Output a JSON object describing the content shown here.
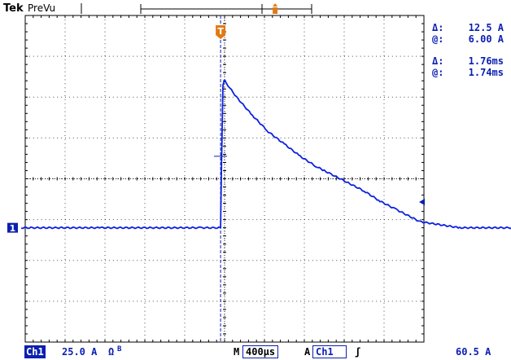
{
  "header": {
    "brand": "Tek",
    "mode": "PreVu",
    "trigger_marker": "T"
  },
  "readouts": {
    "current": {
      "delta_label": "Δ:",
      "delta_value": "12.5 A",
      "at_label": "@:",
      "at_value": "6.00 A"
    },
    "time": {
      "delta_label": "Δ:",
      "delta_value": "1.76ms",
      "at_label": "@:",
      "at_value": "1.74ms"
    }
  },
  "channel_marker": "1",
  "status": {
    "channel": "Ch1",
    "scale": "25.0 A",
    "coupling_symbol": "Ω",
    "bw_symbol": "B",
    "timebase_prefix": "M",
    "timebase": "400µs",
    "trigger_mode": "A",
    "trigger_source": "Ch1",
    "trigger_slope_symbol": "ʃ",
    "trigger_level": "60.5 A"
  },
  "colors": {
    "trace": "#0d22e0",
    "text": "#0b1fb0",
    "trigger_marker": "#e07a12",
    "grid": "#000000"
  },
  "chart_data": {
    "type": "line",
    "series": [
      {
        "x": [
          -5,
          -3,
          -1.2,
          -0.5,
          0,
          0.02,
          0.06,
          0.1,
          0.4,
          0.8,
          1.2,
          1.6,
          2.0,
          2.4,
          2.6,
          2.9,
          3.2,
          3.6,
          4.0,
          4.4,
          5.0,
          6,
          8.2
        ],
        "y": [
          -1.2,
          -1.2,
          -1.2,
          -1.2,
          -1.2,
          0.2,
          2.3,
          2.4,
          2.0,
          1.55,
          1.15,
          0.85,
          0.55,
          0.3,
          0.2,
          0.05,
          -0.1,
          -0.3,
          -0.55,
          -0.75,
          -1.05,
          -1.2,
          -1.2
        ]
      }
    ],
    "xlim": [
      -5,
      8.2
    ],
    "ylim": [
      -4,
      4
    ],
    "cursors": {
      "x_divisions": [
        0,
        7.4
      ]
    },
    "grid": true
  }
}
